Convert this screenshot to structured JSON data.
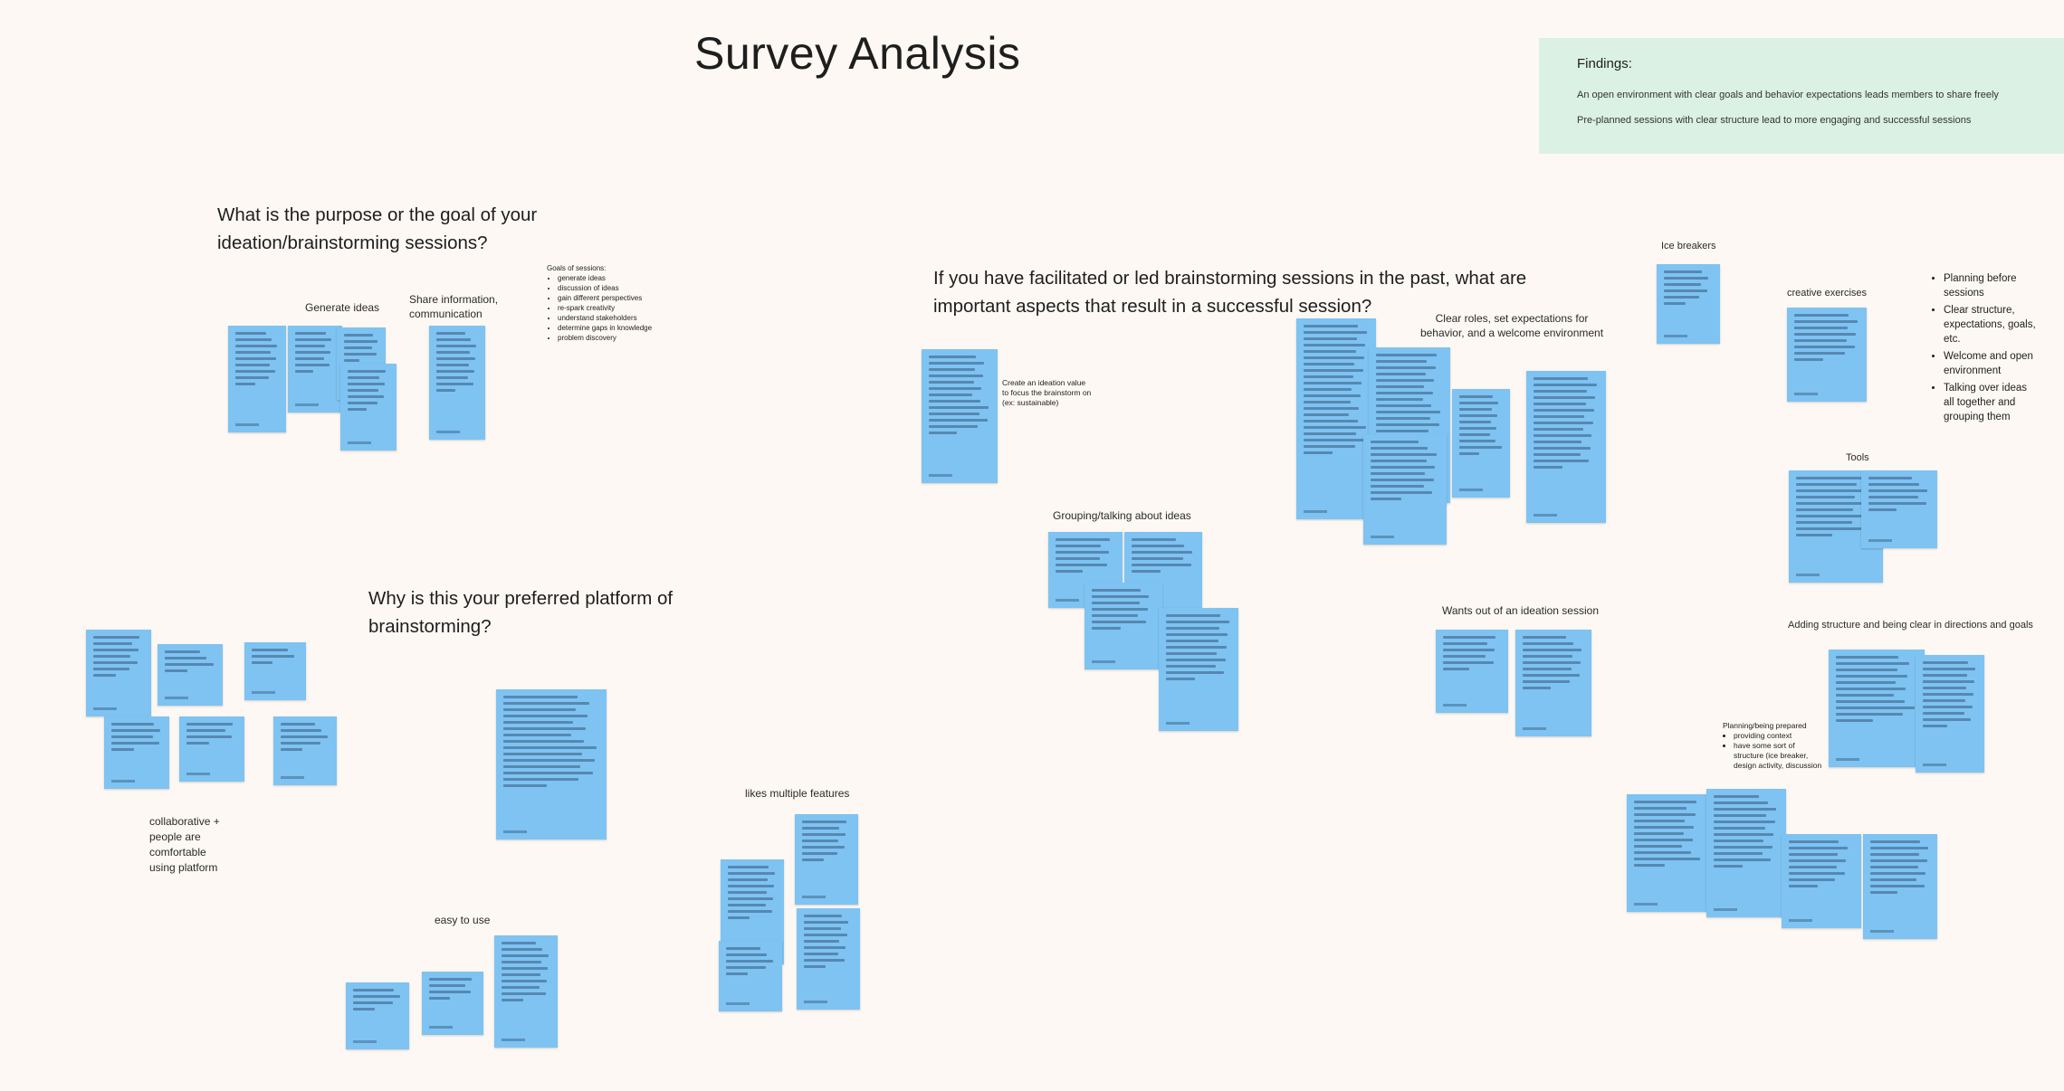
{
  "board_title": "Survey Analysis",
  "findings": {
    "heading": "Findings:",
    "items": [
      "An open environment with clear goals and behavior expectations leads members to share freely",
      "Pre-planned sessions with clear structure lead to more engaging and successful sessions"
    ]
  },
  "questions": {
    "purpose": "What is the purpose or the goal of your ideation/brainstorming sessions?",
    "platform": "Why is this your preferred platform of brainstorming?",
    "success": "If you have facilitated or led brainstorming sessions in the past, what are important aspects that result in a successful session?"
  },
  "purpose_section": {
    "labels": {
      "generate": "Generate ideas",
      "share": "Share information, communication"
    },
    "goals_heading": "Goals of sessions:",
    "goals": [
      "generate ideas",
      "discussion of ideas",
      "gain different perspectives",
      "re-spark creativity",
      "understand stakeholders",
      "determine gaps in knowledge",
      "problem discovery"
    ]
  },
  "platform_section": {
    "labels": {
      "collaborative": "collaborative + people are comfortable using platform",
      "easy": "easy to use",
      "features": "likes multiple features"
    }
  },
  "success_section": {
    "labels": {
      "ideation_value": "Create an ideation value to focus the brainstorm on (ex: sustainable)",
      "clear_roles": "Clear roles, set expectations for behavior, and a welcome environment",
      "grouping": "Grouping/talking about ideas",
      "wants": "Wants out of an ideation session",
      "ice_breakers": "Ice breakers",
      "creative": "creative exercises",
      "tools": "Tools",
      "structure": "Adding structure and being clear in directions and goals",
      "planning": "Planning/being prepared"
    },
    "planning_items": [
      "providing context",
      "have some sort of structure (ice breaker, design activity, discussion"
    ],
    "right_bullets": [
      "Planning before sessions",
      "Clear structure, expectations, goals, etc.",
      "Welcome and open environment",
      "Talking over ideas all together and grouping them"
    ]
  },
  "sticky_color": "#7ec3f2",
  "findings_color": "#dbf1e3",
  "background_color": "#fdf8f3"
}
